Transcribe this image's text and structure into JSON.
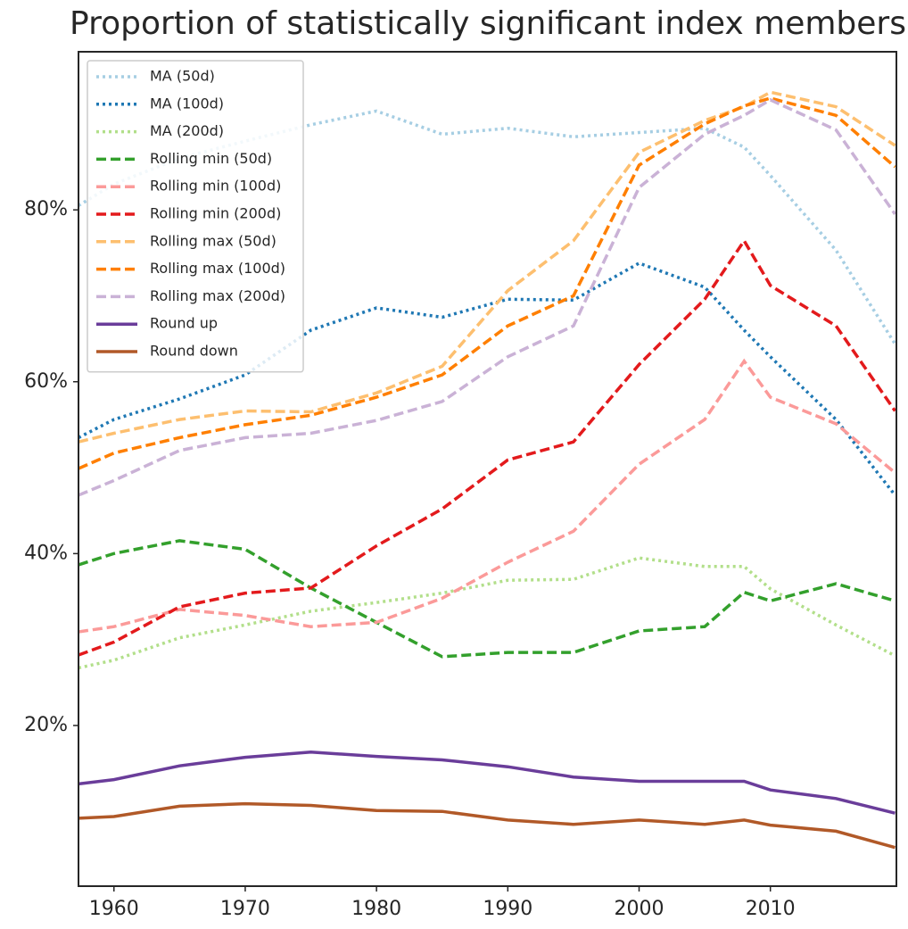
{
  "chart_data": {
    "type": "line",
    "title": "Proportion of statistically significant index members",
    "x": [
      1957.3,
      1960,
      1965,
      1970,
      1975,
      1980,
      1985,
      1990,
      1995,
      2000,
      2005,
      2008,
      2010,
      2015,
      2019.5
    ],
    "series": [
      {
        "name": "MA (50d)",
        "color": "#a6cee3",
        "style": "dotted",
        "values": [
          80.5,
          83,
          86,
          88,
          89.9,
          91.5,
          88.8,
          89.5,
          88.5,
          89,
          89.5,
          87.3,
          84,
          75.3,
          64.4
        ]
      },
      {
        "name": "MA (100d)",
        "color": "#1f78b4",
        "style": "dotted",
        "values": [
          53.5,
          55.6,
          58,
          60.8,
          66,
          68.6,
          67.5,
          69.6,
          69.5,
          73.8,
          71,
          66,
          62.9,
          55.6,
          46.8
        ]
      },
      {
        "name": "MA (200d)",
        "color": "#b2df8a",
        "style": "dotted",
        "values": [
          26.7,
          27.6,
          30.2,
          31.7,
          33.3,
          34.3,
          35.4,
          36.9,
          37,
          39.5,
          38.5,
          38.5,
          35.9,
          31.7,
          28.1
        ]
      },
      {
        "name": "Rolling min (50d)",
        "color": "#33a02c",
        "style": "dashed",
        "values": [
          38.7,
          40,
          41.5,
          40.5,
          36,
          32,
          28,
          28.5,
          28.5,
          31,
          31.5,
          35.5,
          34.5,
          36.5,
          34.5
        ]
      },
      {
        "name": "Rolling min (100d)",
        "color": "#fb9a99",
        "style": "dashed",
        "values": [
          30.9,
          31.5,
          33.5,
          32.8,
          31.5,
          32,
          34.8,
          39,
          42.6,
          50.4,
          55.6,
          62.4,
          58.2,
          55.1,
          49.4
        ]
      },
      {
        "name": "Rolling min (200d)",
        "color": "#e31a1c",
        "style": "dashed",
        "values": [
          28.2,
          29.7,
          33.8,
          35.4,
          36,
          40.9,
          45.2,
          50.9,
          53,
          62,
          69.6,
          76.4,
          71.2,
          66.5,
          56.6
        ]
      },
      {
        "name": "Rolling max (50d)",
        "color": "#fdbf6f",
        "style": "dashed",
        "values": [
          53,
          54,
          55.6,
          56.6,
          56.5,
          58.7,
          61.8,
          70.6,
          76.4,
          86.7,
          90.4,
          92,
          93.7,
          92,
          87.5
        ]
      },
      {
        "name": "Rolling max (100d)",
        "color": "#ff7f00",
        "style": "dashed",
        "values": [
          49.9,
          51.7,
          53.5,
          55,
          56.1,
          58.2,
          60.8,
          66.5,
          70,
          85.2,
          90,
          92.1,
          93,
          91,
          85
        ]
      },
      {
        "name": "Rolling max (200d)",
        "color": "#cab2d6",
        "style": "dashed",
        "values": [
          46.8,
          48.5,
          52,
          53.5,
          54,
          55.5,
          57.7,
          62.9,
          66.5,
          82.6,
          88.8,
          91,
          92.8,
          89.3,
          79.5
        ]
      },
      {
        "name": "Round up",
        "color": "#6a3d9a",
        "style": "solid",
        "values": [
          13.2,
          13.7,
          15.3,
          16.3,
          16.9,
          16.4,
          16,
          15.2,
          14,
          13.5,
          13.5,
          13.5,
          12.5,
          11.5,
          9.8
        ]
      },
      {
        "name": "Round down",
        "color": "#b15928",
        "style": "solid",
        "values": [
          9.2,
          9.4,
          10.6,
          10.9,
          10.7,
          10.1,
          10,
          9,
          8.5,
          9,
          8.5,
          9,
          8.4,
          7.7,
          5.8
        ]
      }
    ],
    "xlim": [
      1957.3,
      2019.6
    ],
    "xticks": [
      1960,
      1970,
      1980,
      1990,
      2000,
      2010
    ],
    "ylim": [
      1.3,
      98.4
    ],
    "yticks": [
      {
        "value": 20,
        "label": "20%"
      },
      {
        "value": 40,
        "label": "40%"
      },
      {
        "value": 60,
        "label": "60%"
      },
      {
        "value": 80,
        "label": "80%"
      }
    ],
    "legend": "upper left"
  }
}
